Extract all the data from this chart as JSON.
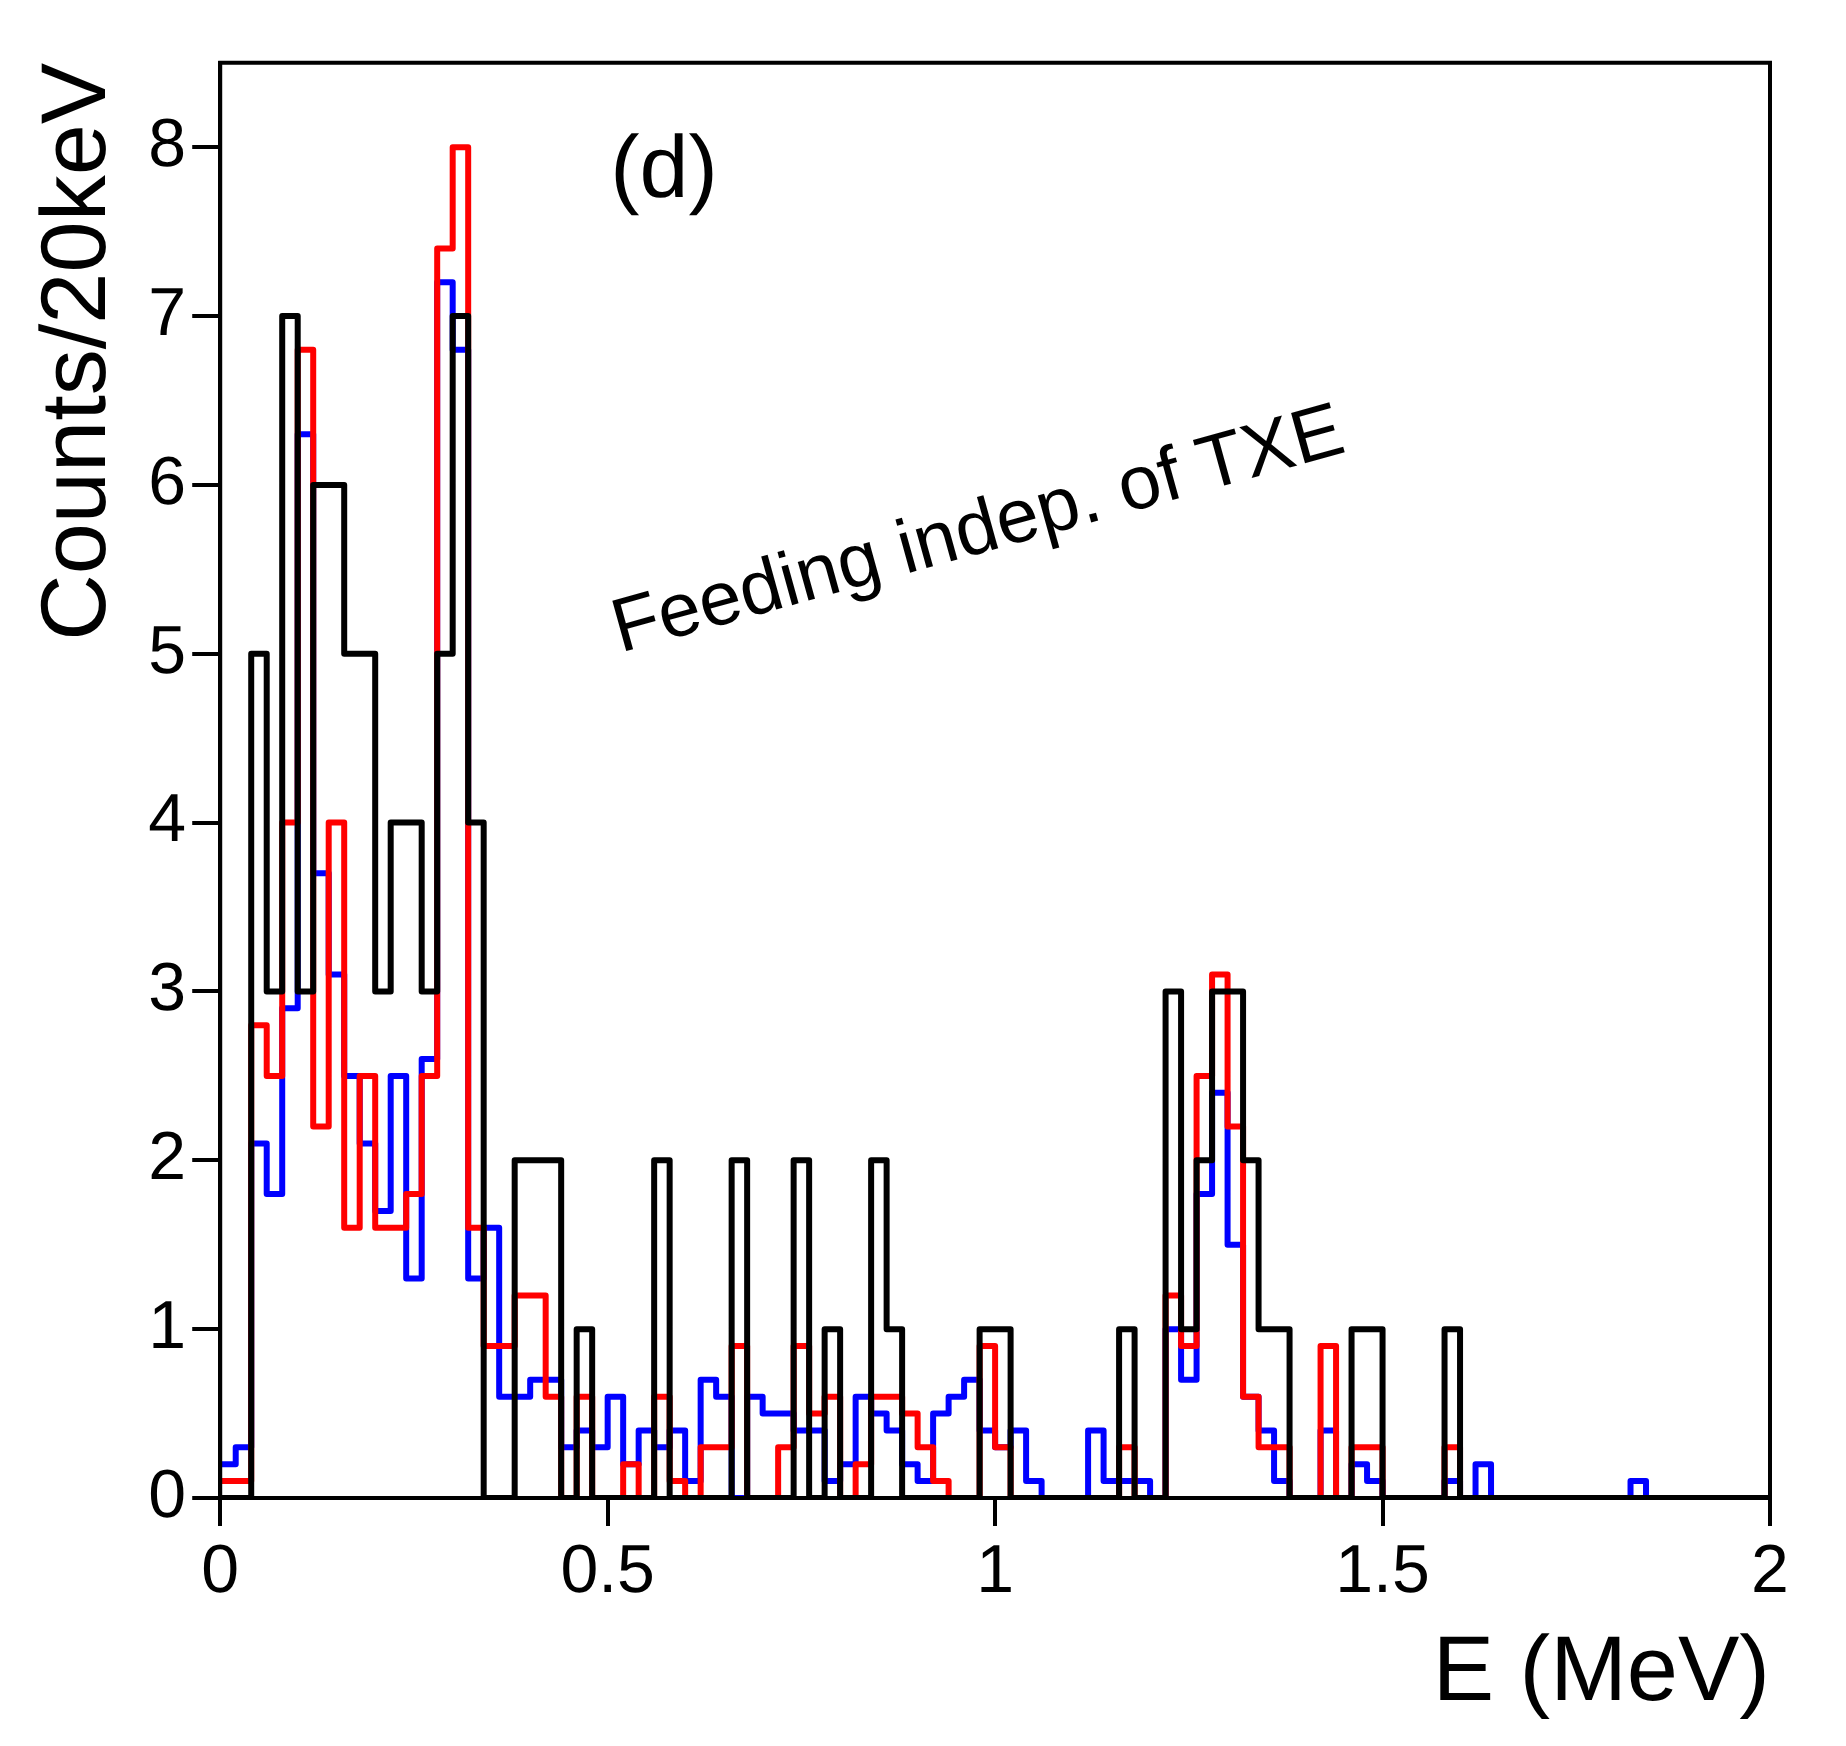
{
  "chart_data": {
    "type": "histogram",
    "xlabel": "E (MeV)",
    "ylabel": "Counts/20keV",
    "annotations": [
      "(d)",
      "Feeding indep. of TXE"
    ],
    "bins": [
      0,
      0.02,
      0.04,
      0.06,
      0.08,
      0.1,
      0.12,
      0.14,
      0.16,
      0.18,
      0.2,
      0.22,
      0.24,
      0.26,
      0.28,
      0.3,
      0.32,
      0.34,
      0.36,
      0.38,
      0.4,
      0.42,
      0.44,
      0.46,
      0.48,
      0.5,
      0.52,
      0.54,
      0.56,
      0.58,
      0.6,
      0.62,
      0.64,
      0.66,
      0.68,
      0.7,
      0.72,
      0.74,
      0.76,
      0.78,
      0.8,
      0.82,
      0.84,
      0.86,
      0.88,
      0.9,
      0.92,
      0.94,
      0.96,
      0.98,
      1,
      1.02,
      1.04,
      1.06,
      1.08,
      1.1,
      1.12,
      1.14,
      1.16,
      1.18,
      1.2,
      1.22,
      1.24,
      1.26,
      1.28,
      1.3,
      1.32,
      1.34,
      1.36,
      1.38,
      1.4,
      1.42,
      1.44,
      1.46,
      1.48,
      1.5,
      1.52,
      1.54,
      1.56,
      1.58,
      1.6,
      1.62,
      1.64,
      1.66,
      1.68,
      1.7,
      1.72,
      1.74,
      1.76,
      1.78,
      1.8,
      1.82,
      1.84,
      1.86,
      1.88,
      1.9,
      1.92,
      1.94,
      1.96,
      1.98,
      2
    ],
    "series": [
      {
        "color": "#000000",
        "values": [
          0,
          0,
          5,
          3,
          7,
          3,
          6,
          6,
          5,
          5,
          3,
          4,
          4,
          3,
          5,
          7,
          4,
          0,
          0,
          2,
          2,
          2,
          0,
          1,
          0,
          0,
          0,
          0,
          2,
          0,
          0,
          0,
          0,
          2,
          0,
          0,
          0,
          2,
          0,
          1,
          0,
          0,
          2,
          1,
          0,
          0,
          0,
          0,
          0,
          1,
          1,
          0,
          0,
          0,
          0,
          0,
          0,
          0,
          1,
          0,
          0,
          3,
          1,
          2,
          3,
          3,
          2,
          1,
          1,
          0,
          0,
          0,
          0,
          1,
          1,
          0,
          0,
          0,
          0,
          1,
          0,
          0,
          0,
          0,
          0,
          0,
          0,
          0,
          0,
          0,
          0,
          0,
          0,
          0,
          0,
          0,
          0,
          0,
          0,
          0
        ]
      },
      {
        "color": "#ff0000",
        "values": [
          0.1,
          0.1,
          2.8,
          2.5,
          4,
          6.8,
          2.2,
          4,
          1.6,
          2.5,
          1.6,
          1.6,
          1.8,
          2.5,
          7.4,
          8,
          1.6,
          0.9,
          0.9,
          1.2,
          1.2,
          0.6,
          0,
          0.6,
          0,
          0,
          0.2,
          0,
          0.6,
          0.1,
          0,
          0.3,
          0.3,
          0.9,
          0,
          0,
          0.3,
          0.9,
          0.5,
          0.6,
          0,
          0.2,
          0.6,
          0.6,
          0.5,
          0.3,
          0.1,
          0,
          0,
          0.9,
          0.3,
          0,
          0,
          0,
          0,
          0,
          0,
          0,
          0.3,
          0,
          0,
          1.2,
          0.9,
          2.5,
          3.1,
          2.2,
          0.6,
          0.3,
          0.3,
          0,
          0,
          0.9,
          0,
          0.3,
          0.3,
          0,
          0,
          0,
          0,
          0.3,
          0,
          0,
          0,
          0,
          0,
          0,
          0,
          0,
          0,
          0,
          0,
          0,
          0,
          0,
          0,
          0,
          0,
          0,
          0,
          0
        ]
      },
      {
        "color": "#0000ff",
        "values": [
          0.2,
          0.3,
          2.1,
          1.8,
          2.9,
          6.3,
          3.7,
          3.1,
          2.5,
          2.1,
          1.7,
          2.5,
          1.3,
          2.6,
          7.2,
          6.8,
          1.3,
          1.6,
          0.6,
          0.6,
          0.7,
          0.7,
          0.3,
          0.4,
          0.3,
          0.6,
          0.2,
          0.4,
          0.3,
          0.4,
          0.1,
          0.7,
          0.6,
          0,
          0.6,
          0.5,
          0.5,
          0.4,
          0.4,
          0.1,
          0.2,
          0.6,
          0.5,
          0.4,
          0.2,
          0.1,
          0.5,
          0.6,
          0.7,
          0.4,
          0.3,
          0.4,
          0.1,
          0,
          0,
          0,
          0.4,
          0.1,
          0.1,
          0.1,
          0,
          1,
          0.7,
          1.8,
          2.4,
          1.5,
          0.6,
          0.4,
          0.1,
          0,
          0,
          0.4,
          0,
          0.2,
          0.1,
          0,
          0,
          0,
          0,
          0.1,
          0,
          0.2,
          0,
          0,
          0,
          0,
          0,
          0,
          0,
          0,
          0,
          0.1,
          0,
          0,
          0,
          0,
          0,
          0,
          0,
          0
        ]
      }
    ],
    "xlim": [
      0,
      2
    ],
    "xticks": [
      0,
      0.5,
      1,
      1.5,
      2
    ],
    "ylim": [
      0,
      8.5
    ],
    "yticks": [
      0,
      1,
      2,
      3,
      4,
      5,
      6,
      7,
      8
    ],
    "grid": false,
    "legend": false
  }
}
